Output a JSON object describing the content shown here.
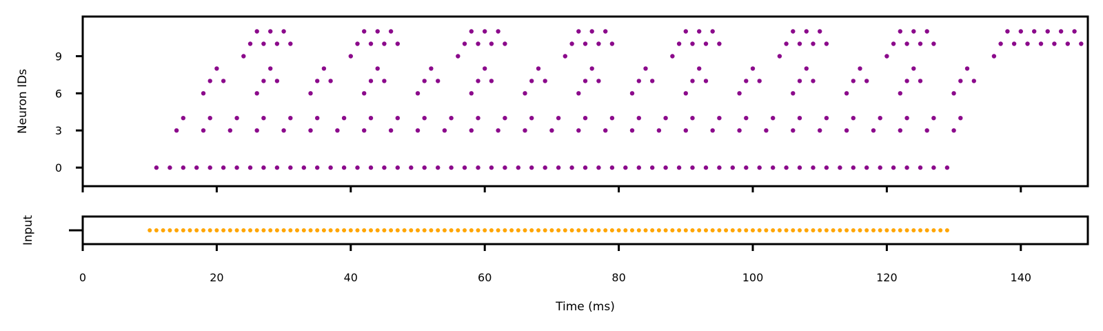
{
  "chart_data": [
    {
      "type": "scatter",
      "panel": "neuron-raster",
      "ylabel": "Neuron IDs",
      "xlim": [
        0,
        150
      ],
      "ylim": [
        -1.5,
        12.2
      ],
      "x_ticks": [
        "0",
        "20",
        "40",
        "60",
        "80",
        "100",
        "120",
        "140"
      ],
      "y_ticks": [
        "0",
        "3",
        "6",
        "9"
      ],
      "marker_color": "#8b0a8b",
      "series": [
        {
          "points": [
            [
              11,
              0
            ],
            [
              13,
              0
            ],
            [
              15,
              0
            ],
            [
              17,
              0
            ],
            [
              19,
              0
            ],
            [
              21,
              0
            ],
            [
              23,
              0
            ],
            [
              25,
              0
            ],
            [
              27,
              0
            ],
            [
              29,
              0
            ],
            [
              31,
              0
            ],
            [
              33,
              0
            ],
            [
              35,
              0
            ],
            [
              37,
              0
            ],
            [
              39,
              0
            ],
            [
              41,
              0
            ],
            [
              43,
              0
            ],
            [
              45,
              0
            ],
            [
              47,
              0
            ],
            [
              49,
              0
            ],
            [
              51,
              0
            ],
            [
              53,
              0
            ],
            [
              55,
              0
            ],
            [
              57,
              0
            ],
            [
              59,
              0
            ],
            [
              61,
              0
            ],
            [
              63,
              0
            ],
            [
              65,
              0
            ],
            [
              67,
              0
            ],
            [
              69,
              0
            ],
            [
              71,
              0
            ],
            [
              73,
              0
            ],
            [
              75,
              0
            ],
            [
              77,
              0
            ],
            [
              79,
              0
            ],
            [
              81,
              0
            ],
            [
              83,
              0
            ],
            [
              85,
              0
            ],
            [
              87,
              0
            ],
            [
              89,
              0
            ],
            [
              91,
              0
            ],
            [
              93,
              0
            ],
            [
              95,
              0
            ],
            [
              97,
              0
            ],
            [
              99,
              0
            ],
            [
              101,
              0
            ],
            [
              103,
              0
            ],
            [
              105,
              0
            ],
            [
              107,
              0
            ],
            [
              109,
              0
            ],
            [
              111,
              0
            ],
            [
              113,
              0
            ],
            [
              115,
              0
            ],
            [
              117,
              0
            ],
            [
              119,
              0
            ],
            [
              121,
              0
            ],
            [
              123,
              0
            ],
            [
              125,
              0
            ],
            [
              127,
              0
            ],
            [
              129,
              0
            ],
            [
              14,
              3
            ],
            [
              15,
              4
            ],
            [
              18,
              3
            ],
            [
              19,
              4
            ],
            [
              22,
              3
            ],
            [
              23,
              4
            ],
            [
              26,
              3
            ],
            [
              27,
              4
            ],
            [
              30,
              3
            ],
            [
              31,
              4
            ],
            [
              34,
              3
            ],
            [
              35,
              4
            ],
            [
              38,
              3
            ],
            [
              39,
              4
            ],
            [
              42,
              3
            ],
            [
              43,
              4
            ],
            [
              46,
              3
            ],
            [
              47,
              4
            ],
            [
              50,
              3
            ],
            [
              51,
              4
            ],
            [
              54,
              3
            ],
            [
              55,
              4
            ],
            [
              58,
              3
            ],
            [
              59,
              4
            ],
            [
              62,
              3
            ],
            [
              63,
              4
            ],
            [
              66,
              3
            ],
            [
              67,
              4
            ],
            [
              70,
              3
            ],
            [
              71,
              4
            ],
            [
              74,
              3
            ],
            [
              75,
              4
            ],
            [
              78,
              3
            ],
            [
              79,
              4
            ],
            [
              82,
              3
            ],
            [
              83,
              4
            ],
            [
              86,
              3
            ],
            [
              87,
              4
            ],
            [
              90,
              3
            ],
            [
              91,
              4
            ],
            [
              94,
              3
            ],
            [
              95,
              4
            ],
            [
              98,
              3
            ],
            [
              99,
              4
            ],
            [
              102,
              3
            ],
            [
              103,
              4
            ],
            [
              106,
              3
            ],
            [
              107,
              4
            ],
            [
              110,
              3
            ],
            [
              111,
              4
            ],
            [
              114,
              3
            ],
            [
              115,
              4
            ],
            [
              118,
              3
            ],
            [
              119,
              4
            ],
            [
              122,
              3
            ],
            [
              123,
              4
            ],
            [
              126,
              3
            ],
            [
              127,
              4
            ],
            [
              130,
              3
            ],
            [
              131,
              4
            ],
            [
              18,
              6
            ],
            [
              19,
              7
            ],
            [
              20,
              8
            ],
            [
              21,
              7
            ],
            [
              26,
              6
            ],
            [
              27,
              7
            ],
            [
              28,
              8
            ],
            [
              29,
              7
            ],
            [
              34,
              6
            ],
            [
              35,
              7
            ],
            [
              36,
              8
            ],
            [
              37,
              7
            ],
            [
              42,
              6
            ],
            [
              43,
              7
            ],
            [
              44,
              8
            ],
            [
              45,
              7
            ],
            [
              50,
              6
            ],
            [
              51,
              7
            ],
            [
              52,
              8
            ],
            [
              53,
              7
            ],
            [
              58,
              6
            ],
            [
              59,
              7
            ],
            [
              60,
              8
            ],
            [
              61,
              7
            ],
            [
              66,
              6
            ],
            [
              67,
              7
            ],
            [
              68,
              8
            ],
            [
              69,
              7
            ],
            [
              74,
              6
            ],
            [
              75,
              7
            ],
            [
              76,
              8
            ],
            [
              77,
              7
            ],
            [
              82,
              6
            ],
            [
              83,
              7
            ],
            [
              84,
              8
            ],
            [
              85,
              7
            ],
            [
              90,
              6
            ],
            [
              91,
              7
            ],
            [
              92,
              8
            ],
            [
              93,
              7
            ],
            [
              98,
              6
            ],
            [
              99,
              7
            ],
            [
              100,
              8
            ],
            [
              101,
              7
            ],
            [
              106,
              6
            ],
            [
              107,
              7
            ],
            [
              108,
              8
            ],
            [
              109,
              7
            ],
            [
              114,
              6
            ],
            [
              115,
              7
            ],
            [
              116,
              8
            ],
            [
              117,
              7
            ],
            [
              122,
              6
            ],
            [
              123,
              7
            ],
            [
              124,
              8
            ],
            [
              125,
              7
            ],
            [
              130,
              6
            ],
            [
              131,
              7
            ],
            [
              132,
              8
            ],
            [
              133,
              7
            ],
            [
              24,
              9
            ],
            [
              25,
              10
            ],
            [
              26,
              11
            ],
            [
              27,
              10
            ],
            [
              28,
              11
            ],
            [
              29,
              10
            ],
            [
              30,
              11
            ],
            [
              31,
              10
            ],
            [
              40,
              9
            ],
            [
              41,
              10
            ],
            [
              42,
              11
            ],
            [
              43,
              10
            ],
            [
              44,
              11
            ],
            [
              45,
              10
            ],
            [
              46,
              11
            ],
            [
              47,
              10
            ],
            [
              56,
              9
            ],
            [
              57,
              10
            ],
            [
              58,
              11
            ],
            [
              59,
              10
            ],
            [
              60,
              11
            ],
            [
              61,
              10
            ],
            [
              62,
              11
            ],
            [
              63,
              10
            ],
            [
              72,
              9
            ],
            [
              73,
              10
            ],
            [
              74,
              11
            ],
            [
              75,
              10
            ],
            [
              76,
              11
            ],
            [
              77,
              10
            ],
            [
              78,
              11
            ],
            [
              79,
              10
            ],
            [
              88,
              9
            ],
            [
              89,
              10
            ],
            [
              90,
              11
            ],
            [
              91,
              10
            ],
            [
              92,
              11
            ],
            [
              93,
              10
            ],
            [
              94,
              11
            ],
            [
              95,
              10
            ],
            [
              104,
              9
            ],
            [
              105,
              10
            ],
            [
              106,
              11
            ],
            [
              107,
              10
            ],
            [
              108,
              11
            ],
            [
              109,
              10
            ],
            [
              110,
              11
            ],
            [
              111,
              10
            ],
            [
              120,
              9
            ],
            [
              121,
              10
            ],
            [
              122,
              11
            ],
            [
              123,
              10
            ],
            [
              124,
              11
            ],
            [
              125,
              10
            ],
            [
              126,
              11
            ],
            [
              127,
              10
            ],
            [
              136,
              9
            ],
            [
              137,
              10
            ],
            [
              138,
              11
            ],
            [
              139,
              10
            ],
            [
              140,
              11
            ],
            [
              141,
              10
            ],
            [
              142,
              11
            ],
            [
              143,
              10
            ],
            [
              144,
              11
            ],
            [
              145,
              10
            ],
            [
              146,
              11
            ],
            [
              147,
              10
            ],
            [
              148,
              11
            ],
            [
              149,
              10
            ]
          ]
        }
      ]
    },
    {
      "type": "scatter",
      "panel": "input-raster",
      "ylabel": "Input",
      "xlabel": "Time (ms)",
      "xlim": [
        0,
        150
      ],
      "ylim": [
        -0.5,
        0.5
      ],
      "x_ticks": [
        "0",
        "20",
        "40",
        "60",
        "80",
        "100",
        "120",
        "140"
      ],
      "marker_color": "#ffa500",
      "series": [
        {
          "x_start": 10,
          "x_end": 129,
          "x_step": 1,
          "y": 0
        }
      ]
    }
  ]
}
